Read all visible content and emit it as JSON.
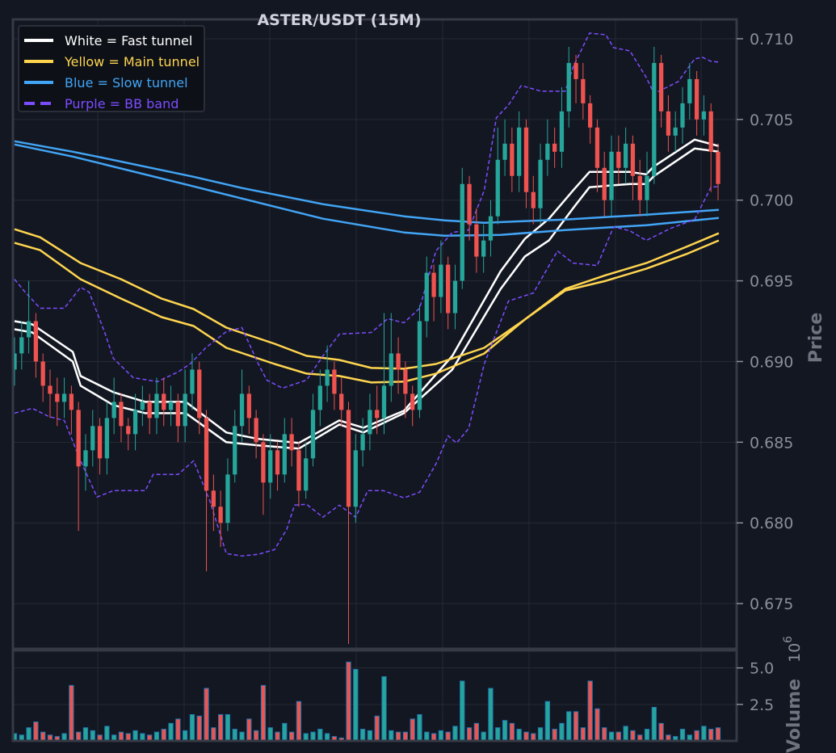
{
  "chart_data": {
    "type": "candlestick",
    "title": "ASTER/USDT (15M)",
    "ylabel": "Price",
    "volume_label": "Volume",
    "volume_exponent": "10",
    "volume_exponent_power": "6",
    "ylim": [
      0.6722,
      0.7112
    ],
    "yticks": [
      "0.675",
      "0.680",
      "0.685",
      "0.690",
      "0.695",
      "0.700",
      "0.705",
      "0.710"
    ],
    "volume_ylim": [
      0,
      6.2
    ],
    "volume_yticks": [
      "2.5",
      "5.0"
    ],
    "grid": true,
    "legend_position": "top-left",
    "legend": [
      {
        "label": "White = Fast tunnel",
        "color": "#ffffff",
        "style": "solid"
      },
      {
        "label": "Yellow = Main tunnel",
        "color": "#ffd54f",
        "style": "solid"
      },
      {
        "label": "Blue = Slow tunnel",
        "color": "#42a5f5",
        "style": "solid"
      },
      {
        "label": "Purple = BB band",
        "color": "#7c4dff",
        "style": "dashed"
      }
    ],
    "colors": {
      "up": "#26a69a",
      "down": "#ef5350",
      "volume_edge": "#1f77b4",
      "background": "#131722"
    },
    "first_open": 0.6895,
    "close": [
      0.6905,
      0.6915,
      0.6925,
      0.69,
      0.6885,
      0.688,
      0.6875,
      0.688,
      0.687,
      0.6835,
      0.6845,
      0.686,
      0.684,
      0.6865,
      0.6875,
      0.686,
      0.6855,
      0.687,
      0.6875,
      0.6865,
      0.688,
      0.687,
      0.6875,
      0.686,
      0.688,
      0.6895,
      0.6865,
      0.682,
      0.681,
      0.68,
      0.683,
      0.686,
      0.688,
      0.6865,
      0.685,
      0.6825,
      0.6845,
      0.683,
      0.6855,
      0.6845,
      0.682,
      0.684,
      0.687,
      0.6885,
      0.6895,
      0.688,
      0.687,
      0.681,
      0.6845,
      0.6855,
      0.687,
      0.6865,
      0.6885,
      0.6905,
      0.6895,
      0.688,
      0.687,
      0.6925,
      0.6955,
      0.694,
      0.696,
      0.693,
      0.695,
      0.701,
      0.6985,
      0.6965,
      0.6975,
      0.699,
      0.7025,
      0.7035,
      0.7015,
      0.7045,
      0.7005,
      0.6995,
      0.7025,
      0.7035,
      0.703,
      0.7055,
      0.7085,
      0.7075,
      0.706,
      0.7045,
      0.702,
      0.7,
      0.703,
      0.702,
      0.7035,
      0.7015,
      0.7,
      0.7015,
      0.7085,
      0.7055,
      0.704,
      0.7045,
      0.706,
      0.7075,
      0.705,
      0.7055,
      0.703,
      0.701
    ],
    "high": [
      0.6915,
      0.6925,
      0.695,
      0.693,
      0.6905,
      0.6895,
      0.689,
      0.689,
      0.6885,
      0.6875,
      0.6855,
      0.687,
      0.6865,
      0.6875,
      0.689,
      0.688,
      0.6865,
      0.688,
      0.6885,
      0.688,
      0.689,
      0.689,
      0.6885,
      0.688,
      0.6895,
      0.6905,
      0.69,
      0.687,
      0.683,
      0.682,
      0.684,
      0.687,
      0.6895,
      0.6885,
      0.687,
      0.6855,
      0.6855,
      0.685,
      0.6865,
      0.6865,
      0.685,
      0.685,
      0.688,
      0.6895,
      0.691,
      0.69,
      0.689,
      0.6875,
      0.6855,
      0.6865,
      0.688,
      0.6885,
      0.693,
      0.693,
      0.6915,
      0.69,
      0.6885,
      0.6935,
      0.6965,
      0.696,
      0.6975,
      0.6965,
      0.696,
      0.702,
      0.7015,
      0.6995,
      0.6985,
      0.7,
      0.7045,
      0.705,
      0.7045,
      0.7055,
      0.705,
      0.7015,
      0.7035,
      0.705,
      0.7045,
      0.707,
      0.7095,
      0.709,
      0.7085,
      0.7065,
      0.705,
      0.703,
      0.704,
      0.704,
      0.7045,
      0.704,
      0.7025,
      0.703,
      0.7095,
      0.709,
      0.7065,
      0.7055,
      0.707,
      0.7085,
      0.708,
      0.7065,
      0.706,
      0.7035
    ],
    "low": [
      0.6885,
      0.6895,
      0.6905,
      0.689,
      0.6875,
      0.6865,
      0.686,
      0.6865,
      0.6855,
      0.6795,
      0.682,
      0.6835,
      0.683,
      0.683,
      0.6855,
      0.685,
      0.6845,
      0.6845,
      0.686,
      0.6855,
      0.6855,
      0.686,
      0.686,
      0.685,
      0.685,
      0.687,
      0.6855,
      0.677,
      0.6795,
      0.6785,
      0.6795,
      0.6825,
      0.685,
      0.6855,
      0.684,
      0.6805,
      0.6815,
      0.682,
      0.6825,
      0.6835,
      0.681,
      0.6815,
      0.6835,
      0.686,
      0.6875,
      0.687,
      0.686,
      0.6725,
      0.68,
      0.6835,
      0.6845,
      0.6855,
      0.6855,
      0.6875,
      0.688,
      0.6865,
      0.686,
      0.6865,
      0.6915,
      0.6925,
      0.693,
      0.692,
      0.692,
      0.6945,
      0.6975,
      0.6955,
      0.6955,
      0.6965,
      0.6985,
      0.7015,
      0.7005,
      0.7005,
      0.6995,
      0.6985,
      0.6985,
      0.7015,
      0.702,
      0.702,
      0.7045,
      0.706,
      0.705,
      0.7035,
      0.7005,
      0.699,
      0.699,
      0.701,
      0.701,
      0.7,
      0.699,
      0.699,
      0.701,
      0.7045,
      0.703,
      0.703,
      0.7035,
      0.705,
      0.704,
      0.704,
      0.7005,
      0.7
    ],
    "volume": [
      0.5,
      0.4,
      0.9,
      1.3,
      0.6,
      0.4,
      0.3,
      0.5,
      3.8,
      0.6,
      0.9,
      0.7,
      0.4,
      1.0,
      0.4,
      0.6,
      0.5,
      0.7,
      0.5,
      0.4,
      0.6,
      0.8,
      1.2,
      1.5,
      0.7,
      1.8,
      1.7,
      3.6,
      0.9,
      1.8,
      1.8,
      0.8,
      0.6,
      1.5,
      0.7,
      3.8,
      0.9,
      0.6,
      1.2,
      0.6,
      2.7,
      0.5,
      0.6,
      0.8,
      0.5,
      0.3,
      0.2,
      5.4,
      4.9,
      0.8,
      0.7,
      1.7,
      4.4,
      0.7,
      0.6,
      0.6,
      1.5,
      1.8,
      0.6,
      0.5,
      0.7,
      0.6,
      1.0,
      4.1,
      0.9,
      1.2,
      0.6,
      3.6,
      0.9,
      1.4,
      1.2,
      0.8,
      0.6,
      0.5,
      0.9,
      2.7,
      0.8,
      1.2,
      2.0,
      2.0,
      0.9,
      4.1,
      2.2,
      0.9,
      0.6,
      0.6,
      1.0,
      0.7,
      0.4,
      0.8,
      2.3,
      1.2,
      0.4,
      0.3,
      0.8,
      0.4,
      0.7,
      1.0,
      0.8,
      0.9
    ],
    "lines": [
      {
        "name": "fast-tunnel-upper",
        "color": "#ffffff",
        "dashed": false,
        "points": [
          [
            0,
            0.6925
          ],
          [
            2.5,
            0.6923
          ],
          [
            8.2,
            0.6906
          ],
          [
            9.3,
            0.6891
          ],
          [
            13.9,
            0.6881
          ],
          [
            18.4,
            0.6875
          ],
          [
            24.1,
            0.6875
          ],
          [
            29.8,
            0.6856
          ],
          [
            34.3,
            0.6852
          ],
          [
            40,
            0.68495
          ],
          [
            45.7,
            0.68635
          ],
          [
            49.1,
            0.6859
          ],
          [
            54.8,
            0.68695
          ],
          [
            61.6,
            0.69035
          ],
          [
            68.4,
            0.6956
          ],
          [
            71.8,
            0.6976
          ],
          [
            75.2,
            0.69885
          ],
          [
            78.6,
            0.7006
          ],
          [
            80.9,
            0.70175
          ],
          [
            86.6,
            0.70175
          ],
          [
            88.9,
            0.7016
          ],
          [
            90,
            0.7021
          ],
          [
            95.7,
            0.70375
          ],
          [
            99.1,
            0.70335
          ]
        ]
      },
      {
        "name": "fast-tunnel-lower",
        "color": "#ffffff",
        "dashed": false,
        "points": [
          [
            0,
            0.692
          ],
          [
            2.5,
            0.6918
          ],
          [
            8.2,
            0.69
          ],
          [
            9.3,
            0.6885
          ],
          [
            13.9,
            0.6873
          ],
          [
            18.4,
            0.6868
          ],
          [
            24.1,
            0.6868
          ],
          [
            29.8,
            0.685
          ],
          [
            34.3,
            0.6848
          ],
          [
            40,
            0.6846
          ],
          [
            45.7,
            0.6861
          ],
          [
            49.1,
            0.6856
          ],
          [
            54.8,
            0.6868
          ],
          [
            61.6,
            0.6895
          ],
          [
            68.4,
            0.6945
          ],
          [
            71.8,
            0.6965
          ],
          [
            75.2,
            0.6975
          ],
          [
            78.6,
            0.6995
          ],
          [
            80.9,
            0.7008
          ],
          [
            86.6,
            0.701
          ],
          [
            88.9,
            0.701
          ],
          [
            90,
            0.7015
          ],
          [
            95.7,
            0.7032
          ],
          [
            99.1,
            0.703
          ]
        ]
      },
      {
        "name": "main-tunnel-upper",
        "color": "#ffd54f",
        "dashed": false,
        "points": [
          [
            0,
            0.6982
          ],
          [
            3.6,
            0.6977
          ],
          [
            9.3,
            0.6961
          ],
          [
            15,
            0.6951
          ],
          [
            20.7,
            0.6939
          ],
          [
            25.2,
            0.69325
          ],
          [
            29.8,
            0.6921
          ],
          [
            36.6,
            0.6911
          ],
          [
            41.1,
            0.69035
          ],
          [
            45.7,
            0.6901
          ],
          [
            50.2,
            0.6896
          ],
          [
            54.8,
            0.68955
          ],
          [
            59.3,
            0.68985
          ],
          [
            66.1,
            0.69085
          ],
          [
            71.8,
            0.6926
          ],
          [
            77.5,
            0.6945
          ],
          [
            83.2,
            0.69535
          ],
          [
            88.9,
            0.6961
          ],
          [
            94.5,
            0.6971
          ],
          [
            99.1,
            0.69795
          ]
        ]
      },
      {
        "name": "main-tunnel-lower",
        "color": "#ffd54f",
        "dashed": false,
        "points": [
          [
            0,
            0.69735
          ],
          [
            3.6,
            0.6969
          ],
          [
            9.3,
            0.6951
          ],
          [
            15,
            0.6939
          ],
          [
            20.7,
            0.69275
          ],
          [
            25.2,
            0.6922
          ],
          [
            29.8,
            0.69085
          ],
          [
            36.6,
            0.68985
          ],
          [
            41.1,
            0.68925
          ],
          [
            45.7,
            0.6891
          ],
          [
            50.2,
            0.6887
          ],
          [
            54.8,
            0.68875
          ],
          [
            59.3,
            0.68925
          ],
          [
            66.1,
            0.6905
          ],
          [
            71.8,
            0.6926
          ],
          [
            77.5,
            0.6944
          ],
          [
            83.2,
            0.695
          ],
          [
            88.9,
            0.69575
          ],
          [
            94.5,
            0.69665
          ],
          [
            99.1,
            0.6975
          ]
        ]
      },
      {
        "name": "slow-tunnel-upper",
        "color": "#42a5f5",
        "dashed": false,
        "points": [
          [
            0,
            0.70365
          ],
          [
            8.2,
            0.703
          ],
          [
            11.6,
            0.7027
          ],
          [
            25.2,
            0.70145
          ],
          [
            32,
            0.70075
          ],
          [
            43.4,
            0.69975
          ],
          [
            54.8,
            0.699
          ],
          [
            60.5,
            0.69875
          ],
          [
            66.1,
            0.6986
          ],
          [
            77.5,
            0.6988
          ],
          [
            88.9,
            0.6991
          ],
          [
            99.1,
            0.6994
          ]
        ]
      },
      {
        "name": "slow-tunnel-lower",
        "color": "#42a5f5",
        "dashed": false,
        "points": [
          [
            0,
            0.70345
          ],
          [
            8.2,
            0.7027
          ],
          [
            25.2,
            0.70085
          ],
          [
            32,
            0.7001
          ],
          [
            43.4,
            0.69885
          ],
          [
            54.8,
            0.698
          ],
          [
            60.5,
            0.6978
          ],
          [
            68.4,
            0.69785
          ],
          [
            77.5,
            0.69815
          ],
          [
            88.9,
            0.69845
          ],
          [
            99.1,
            0.6989
          ]
        ]
      },
      {
        "name": "bb-upper",
        "color": "#7c4dff",
        "dashed": true,
        "points": [
          [
            0,
            0.6951
          ],
          [
            1.4,
            0.69435
          ],
          [
            3.6,
            0.6933
          ],
          [
            7,
            0.6933
          ],
          [
            9.3,
            0.6946
          ],
          [
            10.5,
            0.6943
          ],
          [
            12.7,
            0.6918
          ],
          [
            13.9,
            0.6902
          ],
          [
            16.7,
            0.689
          ],
          [
            20.1,
            0.68875
          ],
          [
            23,
            0.68935
          ],
          [
            24.7,
            0.68985
          ],
          [
            26.9,
            0.69085
          ],
          [
            29.8,
            0.69185
          ],
          [
            32,
            0.6921
          ],
          [
            34.3,
            0.68985
          ],
          [
            35.5,
            0.68885
          ],
          [
            37.7,
            0.68835
          ],
          [
            41.1,
            0.68885
          ],
          [
            43.4,
            0.69035
          ],
          [
            45.7,
            0.6917
          ],
          [
            50.2,
            0.6918
          ],
          [
            52.5,
            0.69265
          ],
          [
            54.8,
            0.6924
          ],
          [
            57,
            0.6933
          ],
          [
            59.3,
            0.69685
          ],
          [
            61.6,
            0.698
          ],
          [
            63.9,
            0.69815
          ],
          [
            66.1,
            0.7006
          ],
          [
            67.8,
            0.7051
          ],
          [
            69.5,
            0.7059
          ],
          [
            71.3,
            0.7071
          ],
          [
            74.1,
            0.70675
          ],
          [
            77.5,
            0.70675
          ],
          [
            78.6,
            0.70825
          ],
          [
            80.9,
            0.71035
          ],
          [
            83.2,
            0.71025
          ],
          [
            84.3,
            0.70945
          ],
          [
            86.6,
            0.70925
          ],
          [
            88.9,
            0.7076
          ],
          [
            90,
            0.7066
          ],
          [
            93.4,
            0.70735
          ],
          [
            95.7,
            0.70875
          ],
          [
            96.8,
            0.70885
          ],
          [
            98,
            0.7086
          ],
          [
            99.2,
            0.70855
          ]
        ]
      },
      {
        "name": "bb-lower",
        "color": "#7c4dff",
        "dashed": true,
        "points": [
          [
            0,
            0.6868
          ],
          [
            2.5,
            0.6871
          ],
          [
            4.8,
            0.6866
          ],
          [
            7,
            0.68635
          ],
          [
            9.3,
            0.68385
          ],
          [
            11.6,
            0.6816
          ],
          [
            13.9,
            0.682
          ],
          [
            18.4,
            0.682
          ],
          [
            19.5,
            0.683
          ],
          [
            23,
            0.683
          ],
          [
            25.2,
            0.68385
          ],
          [
            27.5,
            0.68135
          ],
          [
            29.8,
            0.6781
          ],
          [
            32,
            0.67795
          ],
          [
            34.3,
            0.67805
          ],
          [
            36.6,
            0.67835
          ],
          [
            38.3,
            0.6796
          ],
          [
            39.4,
            0.6811
          ],
          [
            41.1,
            0.68115
          ],
          [
            43.4,
            0.68035
          ],
          [
            45.7,
            0.6811
          ],
          [
            48,
            0.68035
          ],
          [
            49.7,
            0.682
          ],
          [
            51.9,
            0.682
          ],
          [
            54.8,
            0.68155
          ],
          [
            57,
            0.6819
          ],
          [
            59.3,
            0.68365
          ],
          [
            61,
            0.6854
          ],
          [
            62.2,
            0.68495
          ],
          [
            63.9,
            0.68585
          ],
          [
            65,
            0.68785
          ],
          [
            66.1,
            0.68985
          ],
          [
            69.5,
            0.69375
          ],
          [
            73,
            0.69425
          ],
          [
            76.4,
            0.69685
          ],
          [
            78.6,
            0.6961
          ],
          [
            82,
            0.69595
          ],
          [
            84.3,
            0.69835
          ],
          [
            86.6,
            0.6981
          ],
          [
            88.9,
            0.6975
          ],
          [
            92.3,
            0.69825
          ],
          [
            95.7,
            0.6988
          ],
          [
            98,
            0.7008
          ],
          [
            99.2,
            0.70085
          ]
        ]
      }
    ]
  }
}
